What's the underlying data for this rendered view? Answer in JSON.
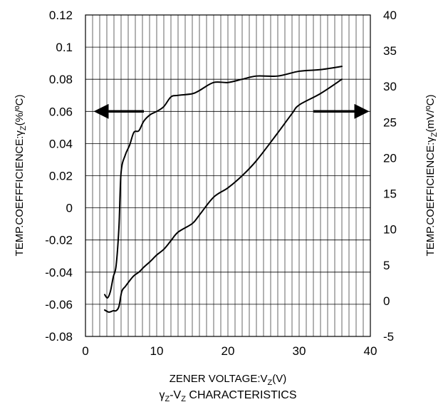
{
  "chart_data": {
    "type": "line",
    "caption_parts": [
      "γ",
      "Z",
      "-V",
      "Z",
      " CHARACTERISTICS"
    ],
    "xlabel_parts": [
      "ZENER VOLTAGE:V",
      "Z",
      "(V)"
    ],
    "ylabel_left_parts": [
      "TEMP.COEFFFICIENCE:γ",
      "Z",
      "(%/ºC)"
    ],
    "ylabel_right_parts": [
      "TEMP.COEFFICIENCE:γ",
      "Z",
      "(mV/ºC)"
    ],
    "xlim": [
      0,
      40
    ],
    "ylim_left": [
      -0.08,
      0.12
    ],
    "ylim_right": [
      -5,
      40
    ],
    "x_ticks": [
      "0",
      "10",
      "20",
      "30",
      "40"
    ],
    "y_left_ticks": [
      "-0.08",
      "-0.06",
      "-0.04",
      "-0.02",
      "0",
      "0.02",
      "0.04",
      "0.06",
      "0.08",
      "0.1",
      "0.12"
    ],
    "y_right_ticks": [
      "-5",
      "0",
      "5",
      "10",
      "15",
      "20",
      "25",
      "30",
      "35",
      "40"
    ],
    "grid": true,
    "x_minor_step": 1,
    "series": [
      {
        "axis": "left",
        "color": "#000000",
        "points": [
          [
            2.7,
            -0.054
          ],
          [
            3.1,
            -0.056
          ],
          [
            3.5,
            -0.052
          ],
          [
            3.9,
            -0.043
          ],
          [
            4.3,
            -0.036
          ],
          [
            4.7,
            -0.012
          ],
          [
            5.0,
            0.022
          ],
          [
            5.6,
            0.033
          ],
          [
            6.2,
            0.039
          ],
          [
            6.8,
            0.047
          ],
          [
            7.5,
            0.048
          ],
          [
            8.2,
            0.054
          ],
          [
            9.1,
            0.058
          ],
          [
            10,
            0.06
          ],
          [
            11,
            0.063
          ],
          [
            12,
            0.069
          ],
          [
            13,
            0.07
          ],
          [
            15,
            0.071
          ],
          [
            16,
            0.073
          ],
          [
            18,
            0.078
          ],
          [
            20,
            0.078
          ],
          [
            22,
            0.08
          ],
          [
            24,
            0.082
          ],
          [
            27,
            0.082
          ],
          [
            30,
            0.085
          ],
          [
            33,
            0.086
          ],
          [
            36,
            0.088
          ]
        ]
      },
      {
        "axis": "right",
        "color": "#000000",
        "points": [
          [
            2.7,
            -1.3
          ],
          [
            3.3,
            -1.6
          ],
          [
            3.9,
            -1.4
          ],
          [
            4.3,
            -1.4
          ],
          [
            4.7,
            -0.8
          ],
          [
            5.1,
            1.3
          ],
          [
            5.6,
            2.0
          ],
          [
            6.2,
            2.8
          ],
          [
            6.8,
            3.5
          ],
          [
            7.5,
            4.0
          ],
          [
            8.2,
            4.7
          ],
          [
            9.1,
            5.5
          ],
          [
            10,
            6.4
          ],
          [
            11,
            7.2
          ],
          [
            12,
            8.4
          ],
          [
            13,
            9.6
          ],
          [
            15,
            10.8
          ],
          [
            16,
            12.0
          ],
          [
            18,
            14.5
          ],
          [
            20,
            15.8
          ],
          [
            22,
            17.5
          ],
          [
            24,
            19.6
          ],
          [
            27,
            23.5
          ],
          [
            29,
            26.2
          ],
          [
            30,
            27.4
          ],
          [
            33,
            29.0
          ],
          [
            36,
            31.0
          ]
        ]
      }
    ],
    "annotations": [
      {
        "kind": "arrow",
        "direction": "left",
        "axis": "left",
        "from_x": 8.2,
        "to_x": 1.5,
        "y": 0.06
      },
      {
        "kind": "arrow",
        "direction": "right",
        "axis": "left",
        "from_x": 32,
        "to_x": 39.5,
        "y": 0.06
      }
    ]
  }
}
